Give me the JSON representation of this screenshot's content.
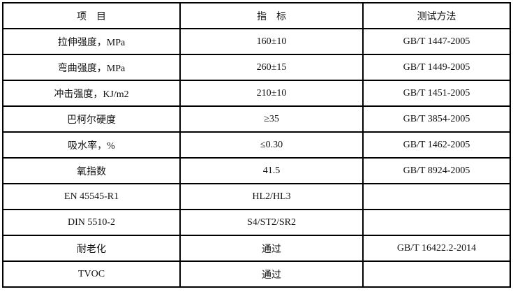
{
  "header": [
    "项　目",
    "指　标",
    "测试方法"
  ],
  "rows": [
    [
      "拉伸强度，MPa",
      "160±10",
      "GB/T 1447-2005"
    ],
    [
      "弯曲强度，MPa",
      "260±15",
      "GB/T 1449-2005"
    ],
    [
      "冲击强度，KJ/m2",
      "210±10",
      "GB/T 1451-2005"
    ],
    [
      "巴柯尔硬度",
      "≥35",
      "GB/T 3854-2005"
    ],
    [
      "吸水率，%",
      "≤0.30",
      "GB/T 1462-2005"
    ],
    [
      "氧指数",
      "41.5",
      "GB/T 8924-2005"
    ],
    [
      "EN 45545-R1",
      "HL2/HL3",
      ""
    ],
    [
      "DIN 5510-2",
      "S4/ST2/SR2",
      ""
    ],
    [
      "耐老化",
      "通过",
      "GB/T 16422.2-2014"
    ],
    [
      "TVOC",
      "通过",
      ""
    ]
  ]
}
